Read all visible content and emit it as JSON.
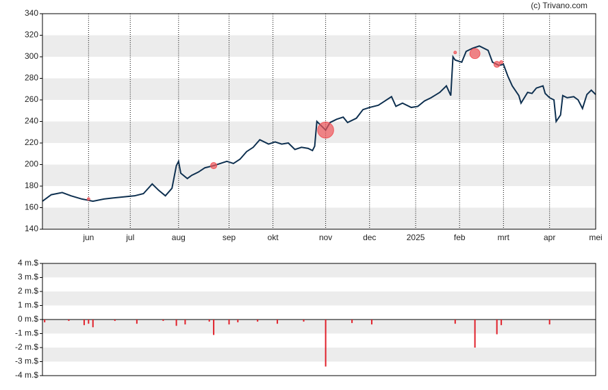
{
  "chart_data": [
    {
      "type": "line",
      "credit": "(c) Trivano.com",
      "x": [
        0,
        4,
        9,
        13,
        18,
        23,
        28,
        32,
        37,
        42,
        46,
        50,
        53,
        56,
        59,
        61,
        62,
        63,
        66,
        68,
        71,
        74,
        78,
        81,
        84,
        87,
        90,
        93,
        96,
        99,
        103,
        106,
        109,
        112,
        115,
        118,
        121,
        123,
        124,
        125,
        127,
        129,
        131,
        134,
        137,
        139,
        143,
        146,
        149,
        153,
        156,
        159,
        161,
        164,
        168,
        171,
        174,
        177,
        181,
        184,
        186,
        187,
        188,
        191,
        193,
        196,
        199,
        203,
        205,
        208,
        210,
        212,
        214,
        217,
        218,
        221,
        223,
        225,
        228,
        229,
        231,
        233,
        234,
        236,
        237,
        239,
        242,
        244,
        246,
        248,
        250,
        252
      ],
      "series": [
        {
          "color": "#0d2f4f",
          "values": [
            166,
            172,
            174,
            171,
            168,
            166,
            168,
            169,
            170,
            171,
            173,
            182,
            176,
            171,
            178,
            199,
            203,
            192,
            187,
            190,
            193,
            197,
            199,
            201,
            203,
            201,
            205,
            212,
            216,
            223,
            219,
            221,
            219,
            220,
            214,
            216,
            215,
            213,
            217,
            240,
            236,
            232,
            239,
            242,
            244,
            239,
            243,
            251,
            253,
            255,
            259,
            263,
            254,
            257,
            253,
            254,
            259,
            262,
            267,
            273,
            264,
            300,
            297,
            295,
            305,
            308,
            310,
            306,
            295,
            292,
            293,
            282,
            273,
            264,
            257,
            267,
            266,
            271,
            273,
            266,
            262,
            260,
            240,
            246,
            264,
            262,
            263,
            260,
            252,
            265,
            269,
            265
          ]
        }
      ],
      "markers": {
        "color": "#f0555a",
        "x": [
          21,
          78,
          129,
          188,
          197,
          207,
          209
        ],
        "values": [
          168,
          199,
          232,
          304,
          303,
          293,
          295
        ],
        "sizes": [
          0.3,
          1.1,
          3.35,
          0.3,
          2.0,
          1.05,
          0.4
        ]
      },
      "xlim": [
        0,
        252
      ],
      "xticks": [
        {
          "value": 21,
          "label": "jun"
        },
        {
          "value": 40,
          "label": "jul"
        },
        {
          "value": 62,
          "label": "aug"
        },
        {
          "value": 85,
          "label": "sep"
        },
        {
          "value": 105,
          "label": "okt"
        },
        {
          "value": 129,
          "label": "nov"
        },
        {
          "value": 149,
          "label": "dec"
        },
        {
          "value": 170,
          "label": "2025"
        },
        {
          "value": 190,
          "label": "feb"
        },
        {
          "value": 210,
          "label": "mrt"
        },
        {
          "value": 231,
          "label": "apr"
        },
        {
          "value": 252,
          "label": "mei"
        }
      ],
      "ylim": [
        140,
        340
      ],
      "yticks": [
        140,
        160,
        180,
        200,
        220,
        240,
        260,
        280,
        300,
        320,
        340
      ]
    },
    {
      "type": "bar",
      "color": "#e0202a",
      "x": [
        1,
        12,
        19,
        21,
        23,
        33,
        43,
        55,
        61,
        65,
        76,
        78,
        85,
        89,
        98,
        107,
        119,
        129,
        141,
        150,
        188,
        197,
        207,
        209,
        231
      ],
      "values": [
        -0.2,
        -0.1,
        -0.4,
        -0.3,
        -0.55,
        -0.1,
        -0.3,
        -0.1,
        -0.45,
        -0.35,
        -0.15,
        -1.1,
        -0.35,
        -0.2,
        -0.15,
        -0.3,
        -0.15,
        -3.35,
        -0.25,
        -0.35,
        -0.3,
        -2.0,
        -1.05,
        -0.4,
        -0.35
      ],
      "xlim": [
        0,
        252
      ],
      "ylim": [
        -4,
        4
      ],
      "yticks": [
        {
          "value": -4,
          "label": "-4 m.$"
        },
        {
          "value": -3,
          "label": "-3 m.$"
        },
        {
          "value": -2,
          "label": "-2 m.$"
        },
        {
          "value": -1,
          "label": "-1 m.$"
        },
        {
          "value": 0,
          "label": "0 m.$"
        },
        {
          "value": 1,
          "label": "1 m.$"
        },
        {
          "value": 2,
          "label": "2 m.$"
        },
        {
          "value": 3,
          "label": "3 m.$"
        },
        {
          "value": 4,
          "label": "4 m.$"
        }
      ]
    }
  ]
}
